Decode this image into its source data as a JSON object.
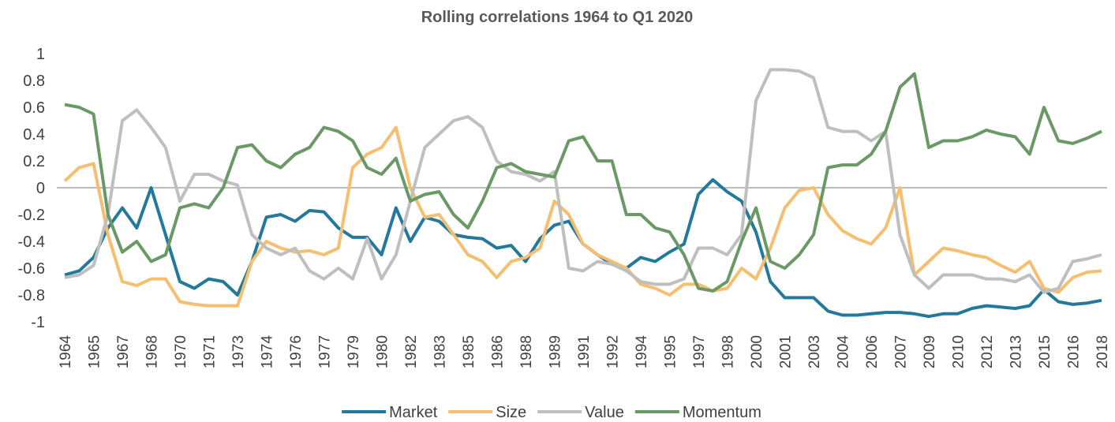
{
  "chart_data": {
    "type": "line",
    "title": "Rolling correlations 1964 to Q1 2020",
    "categories": [
      "1964",
      null,
      "1965",
      null,
      "1967",
      null,
      "1968",
      null,
      "1970",
      null,
      "1971",
      null,
      "1973",
      null,
      "1974",
      null,
      "1976",
      null,
      "1977",
      null,
      "1979",
      null,
      "1980",
      null,
      "1982",
      null,
      "1983",
      null,
      "1985",
      null,
      "1986",
      null,
      "1988",
      null,
      "1989",
      null,
      "1991",
      null,
      "1992",
      null,
      "1994",
      null,
      "1995",
      null,
      "1997",
      null,
      "1998",
      null,
      "2000",
      null,
      "2001",
      null,
      "2003",
      null,
      "2004",
      null,
      "2006",
      null,
      "2007",
      null,
      "2009",
      null,
      "2010",
      null,
      "2012",
      null,
      "2013",
      null,
      "2015",
      null,
      "2016",
      null,
      "2018"
    ],
    "series": [
      {
        "name": "Market",
        "color": "#23799b",
        "values": [
          -0.65,
          -0.62,
          -0.52,
          -0.3,
          -0.15,
          -0.3,
          0.0,
          -0.35,
          -0.7,
          -0.75,
          -0.68,
          -0.7,
          -0.8,
          -0.55,
          -0.22,
          -0.2,
          -0.25,
          -0.17,
          -0.18,
          -0.3,
          -0.37,
          -0.37,
          -0.5,
          -0.15,
          -0.4,
          -0.22,
          -0.25,
          -0.35,
          -0.37,
          -0.38,
          -0.45,
          -0.43,
          -0.55,
          -0.38,
          -0.28,
          -0.25,
          -0.42,
          -0.5,
          -0.57,
          -0.6,
          -0.52,
          -0.55,
          -0.48,
          -0.42,
          -0.05,
          0.06,
          -0.03,
          -0.1,
          -0.33,
          -0.7,
          -0.82,
          -0.82,
          -0.82,
          -0.92,
          -0.95,
          -0.95,
          -0.94,
          -0.93,
          -0.93,
          -0.94,
          -0.96,
          -0.94,
          -0.94,
          -0.9,
          -0.88,
          -0.89,
          -0.9,
          -0.88,
          -0.76,
          -0.85,
          -0.87,
          -0.86,
          -0.84
        ]
      },
      {
        "name": "Size",
        "color": "#f6be6f",
        "values": [
          0.05,
          0.15,
          0.18,
          -0.35,
          -0.7,
          -0.73,
          -0.68,
          -0.68,
          -0.85,
          -0.87,
          -0.88,
          -0.88,
          -0.88,
          -0.55,
          -0.4,
          -0.45,
          -0.48,
          -0.47,
          -0.5,
          -0.45,
          0.15,
          0.25,
          0.3,
          0.45,
          0.0,
          -0.22,
          -0.2,
          -0.35,
          -0.5,
          -0.55,
          -0.67,
          -0.55,
          -0.52,
          -0.45,
          -0.1,
          -0.2,
          -0.42,
          -0.5,
          -0.55,
          -0.6,
          -0.72,
          -0.75,
          -0.8,
          -0.72,
          -0.72,
          -0.77,
          -0.75,
          -0.6,
          -0.68,
          -0.45,
          -0.15,
          -0.02,
          0.0,
          -0.2,
          -0.32,
          -0.38,
          -0.42,
          -0.3,
          0.0,
          -0.65,
          -0.55,
          -0.45,
          -0.47,
          -0.5,
          -0.52,
          -0.58,
          -0.63,
          -0.55,
          -0.75,
          -0.78,
          -0.67,
          -0.63,
          -0.62
        ]
      },
      {
        "name": "Value",
        "color": "#bfbfbf",
        "values": [
          -0.67,
          -0.65,
          -0.58,
          -0.2,
          0.5,
          0.58,
          0.45,
          0.3,
          -0.1,
          0.1,
          0.1,
          0.05,
          0.02,
          -0.35,
          -0.45,
          -0.5,
          -0.45,
          -0.62,
          -0.68,
          -0.6,
          -0.68,
          -0.38,
          -0.68,
          -0.5,
          -0.1,
          0.3,
          0.4,
          0.5,
          0.53,
          0.45,
          0.2,
          0.12,
          0.1,
          0.05,
          0.12,
          -0.6,
          -0.62,
          -0.55,
          -0.57,
          -0.62,
          -0.7,
          -0.72,
          -0.72,
          -0.68,
          -0.45,
          -0.45,
          -0.5,
          -0.35,
          0.65,
          0.88,
          0.88,
          0.87,
          0.82,
          0.45,
          0.42,
          0.42,
          0.35,
          0.42,
          -0.35,
          -0.65,
          -0.75,
          -0.65,
          -0.65,
          -0.65,
          -0.68,
          -0.68,
          -0.7,
          -0.65,
          -0.78,
          -0.75,
          -0.55,
          -0.53,
          -0.5
        ]
      },
      {
        "name": "Momentum",
        "color": "#6b9966",
        "values": [
          0.62,
          0.6,
          0.55,
          -0.2,
          -0.48,
          -0.4,
          -0.55,
          -0.5,
          -0.15,
          -0.12,
          -0.15,
          0.0,
          0.3,
          0.32,
          0.2,
          0.15,
          0.25,
          0.3,
          0.45,
          0.42,
          0.35,
          0.15,
          0.1,
          0.22,
          -0.1,
          -0.05,
          -0.03,
          -0.2,
          -0.3,
          -0.1,
          0.15,
          0.18,
          0.12,
          0.1,
          0.08,
          0.35,
          0.38,
          0.2,
          0.2,
          -0.2,
          -0.2,
          -0.3,
          -0.33,
          -0.5,
          -0.75,
          -0.77,
          -0.7,
          -0.4,
          -0.15,
          -0.55,
          -0.6,
          -0.5,
          -0.35,
          0.15,
          0.17,
          0.17,
          0.25,
          0.42,
          0.75,
          0.85,
          0.3,
          0.35,
          0.35,
          0.38,
          0.43,
          0.4,
          0.38,
          0.25,
          0.6,
          0.35,
          0.33,
          0.37,
          0.42
        ]
      }
    ],
    "ylim": [
      -1,
      1
    ],
    "yticks": [
      1,
      0.8,
      0.6,
      0.4,
      0.2,
      0,
      -0.2,
      -0.4,
      -0.6,
      -0.8,
      -1
    ],
    "legend": "bottom"
  }
}
